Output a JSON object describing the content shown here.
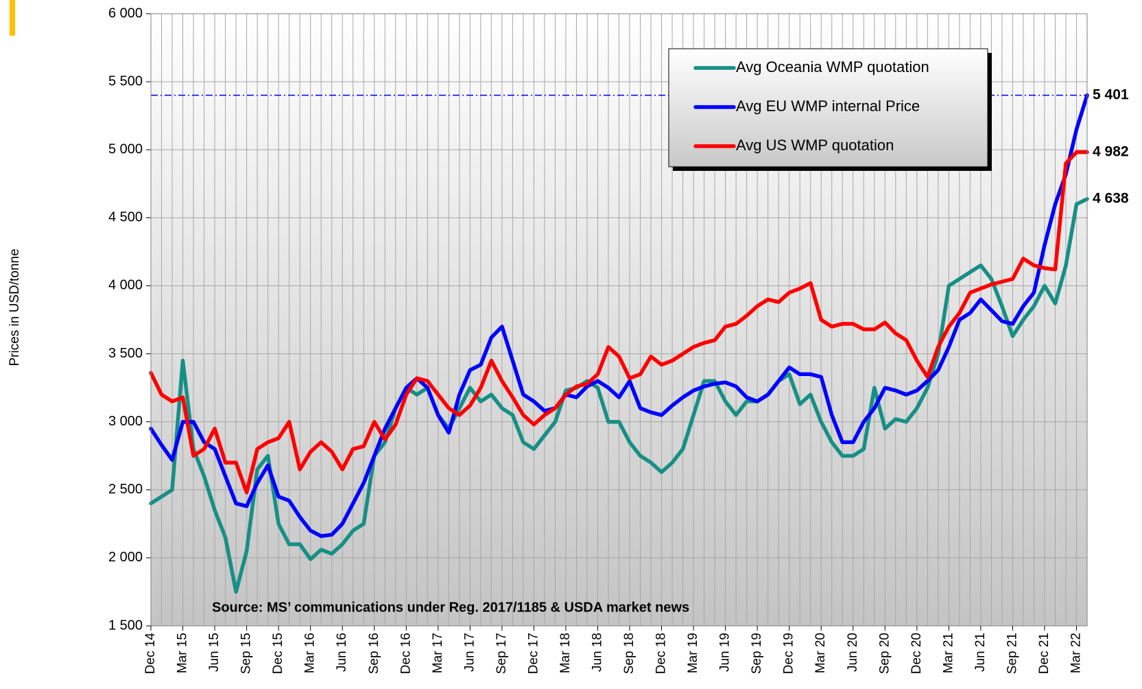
{
  "chart_data": {
    "type": "line",
    "y_label": "Prices in USD/tonne",
    "annotation": "Source: MS’ communications under Reg. 2017/1185 & USDA market news",
    "categories": [
      "Dec 14",
      null,
      null,
      "Mar 15",
      null,
      null,
      "Jun 15",
      null,
      null,
      "Sep 15",
      null,
      null,
      "Dec 15",
      null,
      null,
      "Mar 16",
      null,
      null,
      "Jun 16",
      null,
      null,
      "Sep 16",
      null,
      null,
      "Dec 16",
      null,
      null,
      "Mar 17",
      null,
      null,
      "Jun 17",
      null,
      null,
      "Sep 17",
      null,
      null,
      "Dec 17",
      null,
      null,
      "Mar 18",
      null,
      null,
      "Jun 18",
      null,
      null,
      "Sep 18",
      null,
      null,
      "Dec 18",
      null,
      null,
      "Mar 19",
      null,
      null,
      "Jun 19",
      null,
      null,
      "Sep 19",
      null,
      null,
      "Dec 19",
      null,
      null,
      "Mar 20",
      null,
      null,
      "Jun 20",
      null,
      null,
      "Sep 20",
      null,
      null,
      "Dec 20",
      null,
      null,
      "Mar 21",
      null,
      null,
      "Jun 21",
      null,
      null,
      "Sep 21",
      null,
      null,
      "Dec 21",
      null,
      null,
      "Mar 22",
      null
    ],
    "series": [
      {
        "name": "Avg Oceania WMP quotation",
        "color": "#178f86",
        "label_color": "#3a9a6a",
        "values": [
          2400,
          2450,
          2500,
          3450,
          2800,
          2600,
          2350,
          2150,
          1750,
          2050,
          2650,
          2750,
          2250,
          2100,
          2100,
          1990,
          2060,
          2030,
          2100,
          2200,
          2250,
          2750,
          2850,
          3100,
          3250,
          3200,
          3250,
          3050,
          2950,
          3100,
          3250,
          3150,
          3200,
          3100,
          3050,
          2850,
          2800,
          2900,
          3000,
          3230,
          3250,
          3300,
          3250,
          3000,
          3000,
          2850,
          2750,
          2700,
          2630,
          2700,
          2800,
          3050,
          3300,
          3300,
          3150,
          3050,
          3150,
          3150,
          3200,
          3300,
          3350,
          3130,
          3200,
          3000,
          2850,
          2750,
          2750,
          2800,
          3250,
          2950,
          3020,
          3000,
          3100,
          3250,
          3500,
          4000,
          4050,
          4100,
          4150,
          4050,
          3850,
          3630,
          3750,
          3850,
          4000,
          3870,
          4150,
          4600,
          4638
        ],
        "value_labels": [
          null,
          null,
          null,
          null,
          null,
          null,
          null,
          null,
          null,
          null,
          null,
          null,
          null,
          null,
          null,
          null,
          null,
          null,
          null,
          null,
          null,
          null,
          null,
          null,
          null,
          null,
          null,
          null,
          null,
          null,
          null,
          null,
          null,
          null,
          null,
          null,
          null,
          null,
          null,
          null,
          null,
          null,
          null,
          null,
          null,
          null,
          null,
          null,
          null,
          null,
          null,
          null,
          null,
          null,
          null,
          null,
          null,
          null,
          null,
          null,
          null,
          null,
          null,
          null,
          null,
          null,
          null,
          null,
          null,
          null,
          null,
          null,
          null,
          null,
          null,
          null,
          null,
          null,
          null,
          null,
          null,
          null,
          null,
          null,
          null,
          null,
          null,
          null,
          "4 638"
        ]
      },
      {
        "name": "Avg EU WMP internal Price",
        "color": "#0000ff",
        "label_color": "#0000ff",
        "values": [
          2950,
          2830,
          2720,
          3000,
          3000,
          2850,
          2800,
          2600,
          2400,
          2380,
          2550,
          2680,
          2450,
          2420,
          2300,
          2200,
          2160,
          2170,
          2250,
          2400,
          2550,
          2750,
          2950,
          3100,
          3250,
          3320,
          3250,
          3050,
          2920,
          3200,
          3380,
          3420,
          3620,
          3700,
          3450,
          3200,
          3150,
          3080,
          3100,
          3200,
          3180,
          3260,
          3300,
          3250,
          3180,
          3300,
          3100,
          3070,
          3050,
          3120,
          3180,
          3230,
          3260,
          3280,
          3290,
          3260,
          3180,
          3150,
          3200,
          3300,
          3400,
          3350,
          3350,
          3330,
          3050,
          2850,
          2850,
          3000,
          3100,
          3250,
          3230,
          3200,
          3230,
          3300,
          3380,
          3550,
          3750,
          3800,
          3900,
          3820,
          3740,
          3720,
          3850,
          3950,
          4300,
          4600,
          4820,
          5150,
          5401
        ],
        "value_labels": [
          null,
          null,
          null,
          null,
          null,
          null,
          null,
          null,
          null,
          null,
          null,
          null,
          null,
          null,
          null,
          null,
          null,
          null,
          null,
          null,
          null,
          null,
          null,
          null,
          null,
          null,
          null,
          null,
          null,
          null,
          null,
          null,
          null,
          null,
          null,
          null,
          null,
          null,
          null,
          null,
          null,
          null,
          null,
          null,
          null,
          null,
          null,
          null,
          null,
          null,
          null,
          null,
          null,
          null,
          null,
          null,
          null,
          null,
          null,
          null,
          null,
          null,
          null,
          null,
          null,
          null,
          null,
          null,
          null,
          null,
          null,
          null,
          null,
          null,
          null,
          null,
          null,
          null,
          null,
          null,
          null,
          null,
          null,
          null,
          null,
          null,
          null,
          null,
          "5 401"
        ]
      },
      {
        "name": "Avg US WMP quotation",
        "color": "#ff0000",
        "label_color": "#ff0000",
        "values": [
          3360,
          3200,
          3150,
          3180,
          2750,
          2800,
          2950,
          2700,
          2700,
          2480,
          2800,
          2850,
          2880,
          3000,
          2650,
          2780,
          2850,
          2780,
          2650,
          2800,
          2820,
          3000,
          2870,
          2980,
          3200,
          3320,
          3300,
          3200,
          3100,
          3050,
          3120,
          3250,
          3450,
          3300,
          3180,
          3050,
          2980,
          3050,
          3100,
          3200,
          3260,
          3280,
          3350,
          3550,
          3480,
          3320,
          3350,
          3480,
          3420,
          3450,
          3500,
          3550,
          3580,
          3600,
          3700,
          3720,
          3780,
          3850,
          3900,
          3880,
          3950,
          3980,
          4020,
          3750,
          3700,
          3720,
          3720,
          3680,
          3680,
          3730,
          3650,
          3600,
          3450,
          3330,
          3550,
          3700,
          3800,
          3950,
          3980,
          4010,
          4030,
          4050,
          4200,
          4150,
          4130,
          4120,
          4900,
          4982,
          4982
        ],
        "value_labels": [
          null,
          null,
          null,
          null,
          null,
          null,
          null,
          null,
          null,
          null,
          null,
          null,
          null,
          null,
          null,
          null,
          null,
          null,
          null,
          null,
          null,
          null,
          null,
          null,
          null,
          null,
          null,
          null,
          null,
          null,
          null,
          null,
          null,
          null,
          null,
          null,
          null,
          null,
          null,
          null,
          null,
          null,
          null,
          null,
          null,
          null,
          null,
          null,
          null,
          null,
          null,
          null,
          null,
          null,
          null,
          null,
          null,
          null,
          null,
          null,
          null,
          null,
          null,
          null,
          null,
          null,
          null,
          null,
          null,
          null,
          null,
          null,
          null,
          null,
          null,
          null,
          null,
          null,
          null,
          null,
          null,
          null,
          null,
          null,
          null,
          null,
          null,
          null,
          "4 982"
        ]
      }
    ],
    "ylim": [
      1500,
      6000
    ],
    "yticks": [
      {
        "value": 1500,
        "label": "1 500"
      },
      {
        "value": 2000,
        "label": "2 000"
      },
      {
        "value": 2500,
        "label": "2 500"
      },
      {
        "value": 3000,
        "label": "3 000"
      },
      {
        "value": 3500,
        "label": "3 500"
      },
      {
        "value": 4000,
        "label": "4 000"
      },
      {
        "value": 4500,
        "label": "4 500"
      },
      {
        "value": 5000,
        "label": "5 000"
      },
      {
        "value": 5500,
        "label": "5 500"
      },
      {
        "value": 6000,
        "label": "6 000"
      }
    ],
    "grid": true,
    "reference_line_color": "#0000ff"
  }
}
